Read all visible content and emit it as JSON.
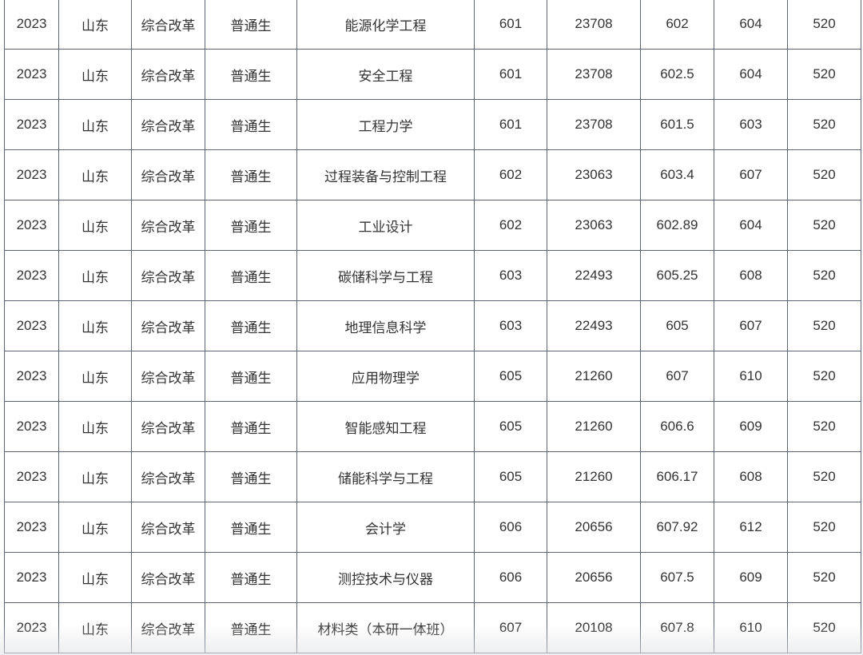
{
  "table": {
    "rows": [
      [
        "2023",
        "山东",
        "综合改革",
        "普通生",
        "能源化学工程",
        "601",
        "23708",
        "602",
        "604",
        "520"
      ],
      [
        "2023",
        "山东",
        "综合改革",
        "普通生",
        "安全工程",
        "601",
        "23708",
        "602.5",
        "604",
        "520"
      ],
      [
        "2023",
        "山东",
        "综合改革",
        "普通生",
        "工程力学",
        "601",
        "23708",
        "601.5",
        "603",
        "520"
      ],
      [
        "2023",
        "山东",
        "综合改革",
        "普通生",
        "过程装备与控制工程",
        "602",
        "23063",
        "603.4",
        "607",
        "520"
      ],
      [
        "2023",
        "山东",
        "综合改革",
        "普通生",
        "工业设计",
        "602",
        "23063",
        "602.89",
        "604",
        "520"
      ],
      [
        "2023",
        "山东",
        "综合改革",
        "普通生",
        "碳储科学与工程",
        "603",
        "22493",
        "605.25",
        "608",
        "520"
      ],
      [
        "2023",
        "山东",
        "综合改革",
        "普通生",
        "地理信息科学",
        "603",
        "22493",
        "605",
        "607",
        "520"
      ],
      [
        "2023",
        "山东",
        "综合改革",
        "普通生",
        "应用物理学",
        "605",
        "21260",
        "607",
        "610",
        "520"
      ],
      [
        "2023",
        "山东",
        "综合改革",
        "普通生",
        "智能感知工程",
        "605",
        "21260",
        "606.6",
        "609",
        "520"
      ],
      [
        "2023",
        "山东",
        "综合改革",
        "普通生",
        "储能科学与工程",
        "605",
        "21260",
        "606.17",
        "608",
        "520"
      ],
      [
        "2023",
        "山东",
        "综合改革",
        "普通生",
        "会计学",
        "606",
        "20656",
        "607.92",
        "612",
        "520"
      ],
      [
        "2023",
        "山东",
        "综合改革",
        "普通生",
        "测控技术与仪器",
        "606",
        "20656",
        "607.5",
        "609",
        "520"
      ],
      [
        "2023",
        "山东",
        "综合改革",
        "普通生",
        "材料类（本研一体班）",
        "607",
        "20108",
        "607.8",
        "610",
        "520"
      ]
    ]
  }
}
